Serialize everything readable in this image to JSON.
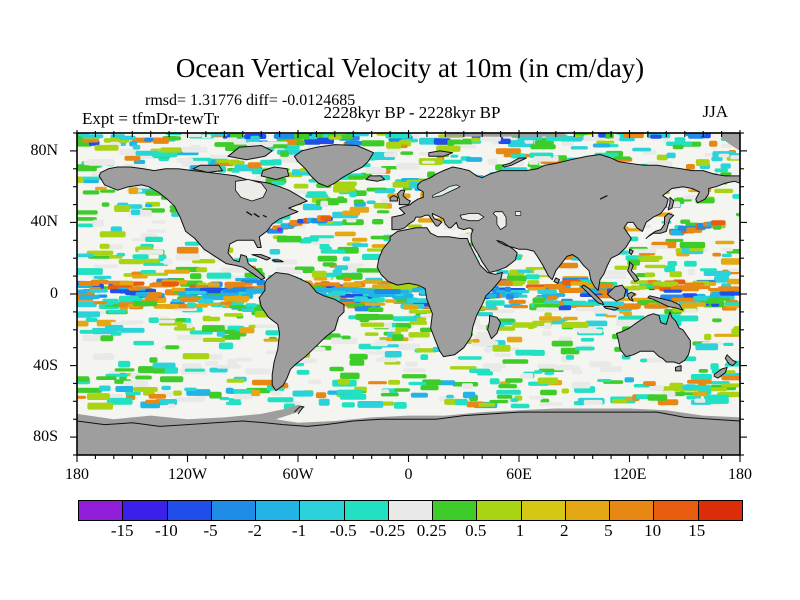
{
  "header": {
    "title": "Ocean Vertical Velocity at 10m (in cm/day)",
    "stats": "rmsd= 1.31776 diff= -0.0124685",
    "experiment": "Expt = tfmDr-tewTr",
    "period": "2228kyr BP - 2228kyr BP",
    "season": "JJA"
  },
  "axes": {
    "x_tick_labels": [
      "180",
      "120W",
      "60W",
      "0",
      "60E",
      "120E",
      "180"
    ],
    "y_tick_labels": [
      "80N",
      "40N",
      "0",
      "40S",
      "80S"
    ]
  },
  "colorbar_labels": [
    "-15",
    "-10",
    "-5",
    "-2",
    "-1",
    "-0.5",
    "-0.25",
    "0.25",
    "0.5",
    "1",
    "2",
    "5",
    "10",
    "15"
  ],
  "chart_data": {
    "type": "heatmap",
    "title": "Ocean Vertical Velocity at 10m (in cm/day)",
    "stats": {
      "rmsd": 1.31776,
      "diff": -0.0124685
    },
    "experiment": "tfmDr-tewTr",
    "comparison": "2228kyr BP - 2228kyr BP",
    "season": "JJA",
    "units": "cm/day",
    "projection": "equirectangular world map, land masked gray",
    "lon_axis": {
      "range": [
        -180,
        180
      ],
      "tick_labels": [
        "180",
        "120W",
        "60W",
        "0",
        "60E",
        "120E",
        "180"
      ],
      "minor_tick_deg": 10,
      "major_tick_deg": 60
    },
    "lat_axis": {
      "range": [
        -90,
        90
      ],
      "tick_labels": [
        "80N",
        "40N",
        "0",
        "40S",
        "80S"
      ],
      "minor_tick_deg": 10,
      "major_tick_deg": 40
    },
    "colorbar": {
      "boundaries": [
        -15,
        -10,
        -5,
        -2,
        -1,
        -0.5,
        -0.25,
        0.25,
        0.5,
        1,
        2,
        5,
        10,
        15
      ],
      "segment_colors": [
        "#911fd9",
        "#3c1fe8",
        "#1f4fe8",
        "#1f8ce8",
        "#22b4e4",
        "#2cd2da",
        "#22e0c2",
        "#e9e9e7",
        "#3ecc2a",
        "#a8d414",
        "#d4c814",
        "#e4a814",
        "#e88814",
        "#e85c10",
        "#db2d08"
      ],
      "position": "bottom",
      "meaning": "negative values purple/blue (downwelling), near-zero white, positive green/yellow/orange/red (upwelling)"
    },
    "land_mask_color": "#9e9e9e",
    "ocean_background_color": "#f4f4f1",
    "notes": "Filled-contour difference map; strong alternating positive/negative bands along the equator, mixed cyan/green mottling at mid and high latitudes, white areas in subtropical gyres, gray Antarctica band at bottom and gray Arctic land at top."
  }
}
